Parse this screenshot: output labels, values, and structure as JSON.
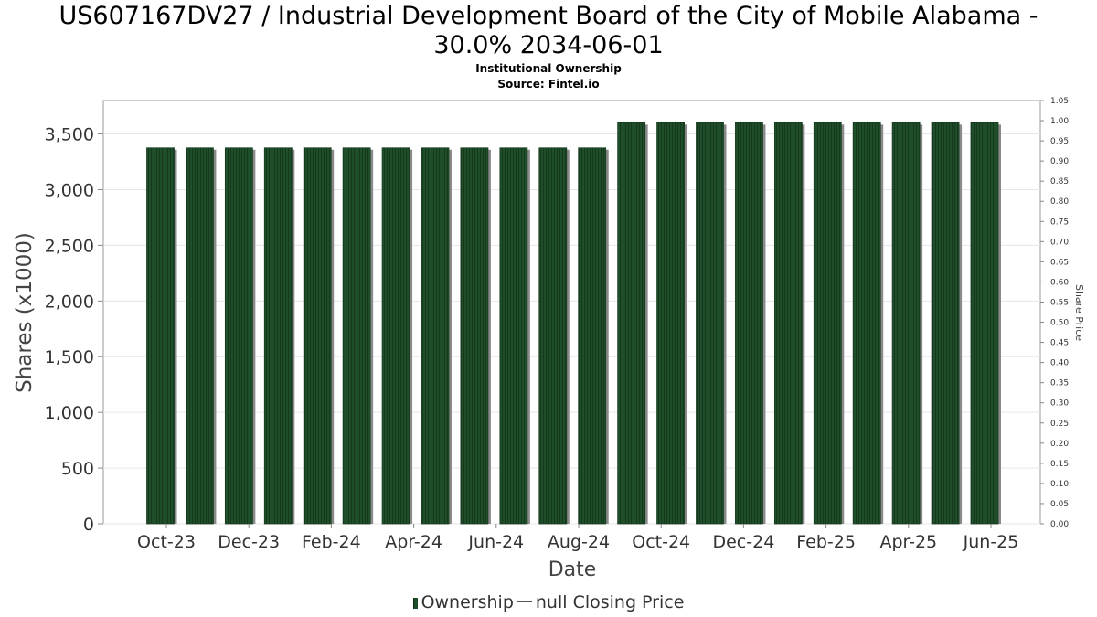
{
  "title_line1": "US607167DV27 / Industrial Development Board of the City of Mobile Alabama -",
  "title_line2": "30.0% 2034-06-01",
  "subtitle1": "Institutional Ownership",
  "subtitle2": "Source: Fintel.io",
  "legend": {
    "ownership": "Ownership",
    "price": "null Closing Price"
  },
  "colors": {
    "bar": "#1f4f2a",
    "bar_shadow": "#8a8a8a",
    "grid": "#e6e6e6"
  },
  "chart_data": {
    "type": "bar",
    "xlabel": "Date",
    "ylabel": "Shares (x1000)",
    "y2label": "Share Price",
    "ylim": [
      0,
      3800
    ],
    "y2lim": [
      0,
      1.05
    ],
    "yticks": [
      "0",
      "500",
      "1,000",
      "1,500",
      "2,000",
      "2,500",
      "3,000",
      "3,500"
    ],
    "y2ticks": [
      "0.00",
      "0.05",
      "0.10",
      "0.15",
      "0.20",
      "0.25",
      "0.30",
      "0.35",
      "0.40",
      "0.45",
      "0.50",
      "0.55",
      "0.60",
      "0.65",
      "0.70",
      "0.75",
      "0.80",
      "0.85",
      "0.90",
      "0.95",
      "1.00",
      "1.05"
    ],
    "xticks": [
      "Oct-23",
      "Dec-23",
      "Feb-24",
      "Apr-24",
      "Jun-24",
      "Aug-24",
      "Oct-24",
      "Dec-24",
      "Feb-25",
      "Apr-25",
      "Jun-25"
    ],
    "grid": true,
    "legend_position": "bottom",
    "series": [
      {
        "name": "Ownership",
        "values": [
          3375,
          3375,
          3375,
          3375,
          3375,
          3375,
          3375,
          3375,
          3375,
          3375,
          3375,
          3375,
          3600,
          3600,
          3600,
          3600,
          3600,
          3600,
          3600,
          3600,
          3600,
          3600
        ]
      }
    ]
  }
}
